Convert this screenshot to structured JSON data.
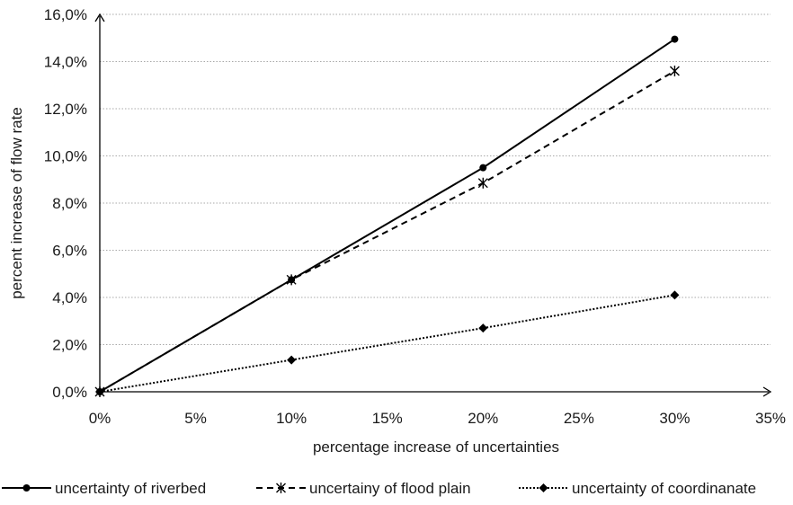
{
  "chart_data": {
    "type": "line",
    "xlabel": "percentage increase of uncertainties",
    "ylabel": "percent increase of flow rate",
    "x_ticks": [
      "0%",
      "5%",
      "10%",
      "15%",
      "20%",
      "25%",
      "30%",
      "35%"
    ],
    "y_ticks": [
      "0,0%",
      "2,0%",
      "4,0%",
      "6,0%",
      "8,0%",
      "10,0%",
      "12,0%",
      "14,0%",
      "16,0%"
    ],
    "xlim": [
      0,
      35
    ],
    "ylim": [
      0,
      16
    ],
    "grid": "horizontal dotted",
    "legend_position": "bottom",
    "series": [
      {
        "name": "uncertainty of riverbed",
        "style": "solid",
        "marker": "circle",
        "color": "#000000",
        "x": [
          0,
          10,
          20,
          30
        ],
        "y": [
          0.0,
          4.75,
          9.5,
          14.95
        ]
      },
      {
        "name": "uncertainy of flood plain",
        "style": "dashed",
        "marker": "asterisk",
        "color": "#000000",
        "x": [
          0,
          10,
          20,
          30
        ],
        "y": [
          0.0,
          4.75,
          8.85,
          13.6
        ]
      },
      {
        "name": "uncertainty of coordinanate",
        "style": "dotted",
        "marker": "diamond",
        "color": "#000000",
        "x": [
          0,
          10,
          20,
          30
        ],
        "y": [
          0.0,
          1.35,
          2.7,
          4.1
        ]
      }
    ]
  }
}
